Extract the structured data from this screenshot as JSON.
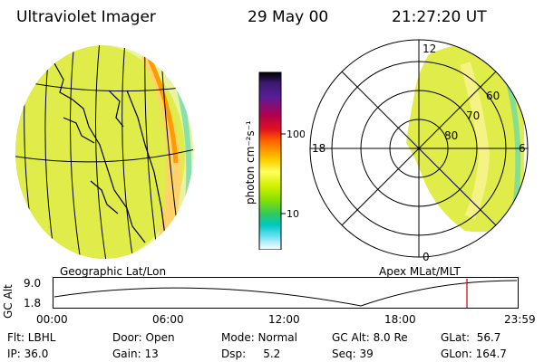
{
  "header": {
    "instrument": "Ultraviolet Imager",
    "date": "29 May 00",
    "time": "21:27:20 UT"
  },
  "colorbar": {
    "unit_label": "photon cm⁻²s⁻¹",
    "tick_labels": [
      "100",
      "10"
    ],
    "colors": [
      "#000000",
      "#3a1a6e",
      "#5a1c9a",
      "#b0004e",
      "#e01020",
      "#ff5a00",
      "#ff9a00",
      "#ffd200",
      "#ffff60",
      "#d4f000",
      "#86e000",
      "#30c860",
      "#00c8c0",
      "#60e0f0",
      "#b8f0f8",
      "#ffffff"
    ]
  },
  "left_panel": {
    "label": "Geographic Lat/Lon"
  },
  "right_panel": {
    "label": "Apex MLat/MLT",
    "mlt_labels": {
      "top": "12",
      "left": "18",
      "right": "6",
      "bottom": "0"
    },
    "lat_labels": [
      "60",
      "70",
      "80"
    ]
  },
  "altitude_plot": {
    "ylabel": "GC Alt",
    "y_ticks": [
      "9.0",
      "1.8"
    ],
    "x_ticks": [
      "00:00",
      "06:00",
      "12:00",
      "18:00",
      "23:59"
    ],
    "marker_color": "#cc0000"
  },
  "status": {
    "flt": "Flt: LBHL",
    "ip": "IP: 36.0",
    "door": "Door: Open",
    "gain": "Gain: 13",
    "mode": "Mode: Normal",
    "dsp": "Dsp:     5.2",
    "gc_alt": "GC Alt: 8.0 Re",
    "seq": "Seq: 39",
    "glat": "GLat:  56.7",
    "glon": "GLon: 164.7"
  }
}
